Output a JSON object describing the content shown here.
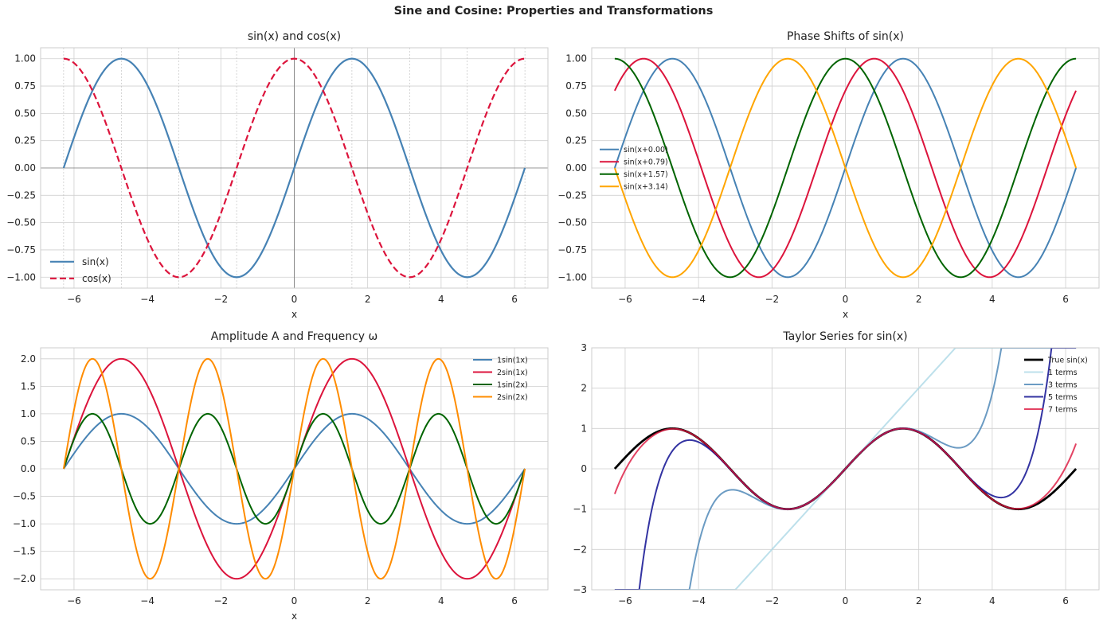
{
  "figure": {
    "suptitle": "Sine and Cosine: Properties and Transformations"
  },
  "chart_data": [
    {
      "type": "line",
      "title": "sin(x) and cos(x)",
      "xlabel": "x",
      "ylabel": "",
      "xlim": [
        -6.91,
        6.91
      ],
      "ylim": [
        -1.1,
        1.1
      ],
      "xticks": [
        -6,
        -4,
        -2,
        0,
        2,
        4,
        6
      ],
      "yticks": [
        -1.0,
        -0.75,
        -0.5,
        -0.25,
        0.0,
        0.25,
        0.5,
        0.75,
        1.0
      ],
      "ytick_labels": [
        "−1.00",
        "−0.75",
        "−0.50",
        "−0.25",
        "0.00",
        "0.25",
        "0.50",
        "0.75",
        "1.00"
      ],
      "xtick_labels": [
        "−6",
        "−4",
        "−2",
        "0",
        "2",
        "4",
        "6"
      ],
      "x_range": [
        -6.2832,
        6.2832
      ],
      "legend": "lower-left",
      "series": [
        {
          "name": "sin(x)",
          "fn": "sin",
          "A": 1,
          "w": 1,
          "phi": 0,
          "color": "#4682b4",
          "dash": "solid",
          "width": 2.2
        },
        {
          "name": "cos(x)",
          "fn": "cos",
          "A": 1,
          "w": 1,
          "phi": 0,
          "color": "#dc143c",
          "dash": "dashed",
          "width": 2.2
        }
      ],
      "annotations": {
        "minor_vertical_gridlines_at_multiples_of_pi_over_2": true,
        "axes_lines_at_zero": true
      }
    },
    {
      "type": "line",
      "title": "Phase Shifts of sin(x)",
      "xlabel": "x",
      "ylabel": "",
      "xlim": [
        -6.91,
        6.91
      ],
      "ylim": [
        -1.1,
        1.1
      ],
      "xticks": [
        -6,
        -4,
        -2,
        0,
        2,
        4,
        6
      ],
      "yticks": [
        -1.0,
        -0.75,
        -0.5,
        -0.25,
        0.0,
        0.25,
        0.5,
        0.75,
        1.0
      ],
      "ytick_labels": [
        "−1.00",
        "−0.75",
        "−0.50",
        "−0.25",
        "0.00",
        "0.25",
        "0.50",
        "0.75",
        "1.00"
      ],
      "xtick_labels": [
        "−6",
        "−4",
        "−2",
        "0",
        "2",
        "4",
        "6"
      ],
      "x_range": [
        -6.2832,
        6.2832
      ],
      "legend": "center-left",
      "series": [
        {
          "name": "sin(x+0.00)",
          "fn": "sin",
          "A": 1,
          "w": 1,
          "phi": 0.0,
          "color": "#4682b4",
          "dash": "solid",
          "width": 2
        },
        {
          "name": "sin(x+0.79)",
          "fn": "sin",
          "A": 1,
          "w": 1,
          "phi": 0.7854,
          "color": "#dc143c",
          "dash": "solid",
          "width": 2
        },
        {
          "name": "sin(x+1.57)",
          "fn": "sin",
          "A": 1,
          "w": 1,
          "phi": 1.5708,
          "color": "#006400",
          "dash": "solid",
          "width": 2
        },
        {
          "name": "sin(x+3.14)",
          "fn": "sin",
          "A": 1,
          "w": 1,
          "phi": 3.1416,
          "color": "#ffa500",
          "dash": "solid",
          "width": 2
        }
      ]
    },
    {
      "type": "line",
      "title": "Amplitude A and Frequency ω",
      "xlabel": "x",
      "ylabel": "",
      "xlim": [
        -6.91,
        6.91
      ],
      "ylim": [
        -2.2,
        2.2
      ],
      "xticks": [
        -6,
        -4,
        -2,
        0,
        2,
        4,
        6
      ],
      "yticks": [
        -2.0,
        -1.5,
        -1.0,
        -0.5,
        0.0,
        0.5,
        1.0,
        1.5,
        2.0
      ],
      "ytick_labels": [
        "−2.0",
        "−1.5",
        "−1.0",
        "−0.5",
        "0.0",
        "0.5",
        "1.0",
        "1.5",
        "2.0"
      ],
      "xtick_labels": [
        "−6",
        "−4",
        "−2",
        "0",
        "2",
        "4",
        "6"
      ],
      "x_range": [
        -6.2832,
        6.2832
      ],
      "legend": "top-right",
      "series": [
        {
          "name": "1sin(1x)",
          "fn": "sin",
          "A": 1,
          "w": 1,
          "phi": 0,
          "color": "#4682b4",
          "dash": "solid",
          "width": 2
        },
        {
          "name": "2sin(1x)",
          "fn": "sin",
          "A": 2,
          "w": 1,
          "phi": 0,
          "color": "#dc143c",
          "dash": "solid",
          "width": 2
        },
        {
          "name": "1sin(2x)",
          "fn": "sin",
          "A": 1,
          "w": 2,
          "phi": 0,
          "color": "#006400",
          "dash": "solid",
          "width": 2
        },
        {
          "name": "2sin(2x)",
          "fn": "sin",
          "A": 2,
          "w": 2,
          "phi": 0,
          "color": "#ff8c00",
          "dash": "solid",
          "width": 2
        }
      ]
    },
    {
      "type": "line",
      "title": "Taylor Series for sin(x)",
      "xlabel": "",
      "ylabel": "",
      "xlim": [
        -6.91,
        6.91
      ],
      "ylim": [
        -3,
        3
      ],
      "xticks": [
        -6,
        -4,
        -2,
        0,
        2,
        4,
        6
      ],
      "yticks": [
        -3,
        -2,
        -1,
        0,
        1,
        2,
        3
      ],
      "ytick_labels": [
        "−3",
        "−2",
        "−1",
        "0",
        "1",
        "2",
        "3"
      ],
      "xtick_labels": [
        "−6",
        "−4",
        "−2",
        "0",
        "2",
        "4",
        "6"
      ],
      "x_range": [
        -6.2832,
        6.2832
      ],
      "clip_values": [
        -3,
        3
      ],
      "legend": "top-right",
      "series": [
        {
          "name": "True sin(x)",
          "fn": "sin",
          "A": 1,
          "w": 1,
          "phi": 0,
          "color": "#000000",
          "dash": "solid",
          "width": 2.8
        },
        {
          "name": "1 terms",
          "fn": "taylor",
          "terms": 1,
          "color": "#add8e6",
          "dash": "solid",
          "width": 2,
          "opacity": 0.8
        },
        {
          "name": "3 terms",
          "fn": "taylor",
          "terms": 3,
          "color": "#4682b4",
          "dash": "solid",
          "width": 2,
          "opacity": 0.8
        },
        {
          "name": "5 terms",
          "fn": "taylor",
          "terms": 5,
          "color": "#00008b",
          "dash": "solid",
          "width": 2,
          "opacity": 0.8
        },
        {
          "name": "7 terms",
          "fn": "taylor",
          "terms": 7,
          "color": "#dc143c",
          "dash": "solid",
          "width": 2,
          "opacity": 0.8
        }
      ]
    }
  ]
}
